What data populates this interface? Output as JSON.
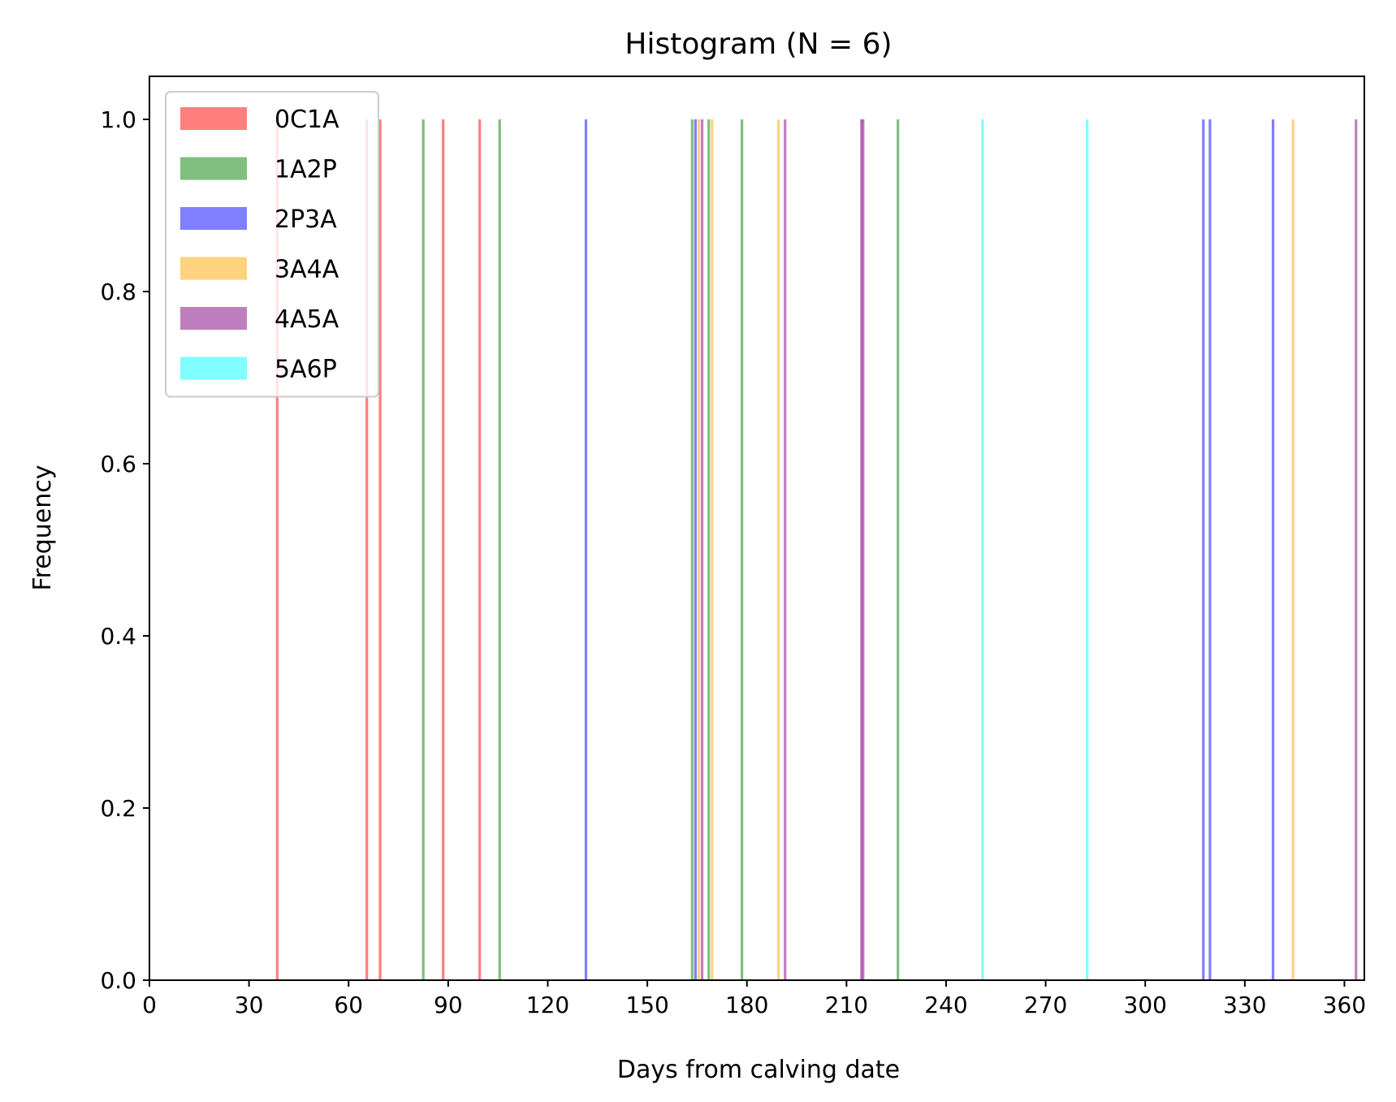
{
  "chart_data": {
    "type": "bar",
    "title": "Histogram (N = 6)",
    "xlabel": "Days from calving date",
    "ylabel": "Frequency",
    "xlim": [
      0,
      366
    ],
    "ylim": [
      0,
      1.05
    ],
    "xticks": [
      0,
      30,
      60,
      90,
      120,
      150,
      180,
      210,
      240,
      270,
      300,
      330,
      360
    ],
    "yticks": [
      0.0,
      0.2,
      0.4,
      0.6,
      0.8,
      1.0
    ],
    "ytick_labels": [
      "0.0",
      "0.2",
      "0.4",
      "0.6",
      "0.8",
      "1.0"
    ],
    "grid": false,
    "legend_position": "upper-left",
    "series": [
      {
        "name": "0C1A",
        "color": "#ff0000",
        "x": [
          38.5,
          65.5,
          69.5,
          88.5,
          99.5
        ],
        "values": [
          1,
          1,
          1,
          1,
          1
        ]
      },
      {
        "name": "1A2P",
        "color": "#008000",
        "x": [
          82.5,
          105.5,
          163.5,
          168.5,
          178.5,
          225.5
        ],
        "values": [
          1,
          1,
          1,
          1,
          1,
          1
        ]
      },
      {
        "name": "2P3A",
        "color": "#0000ff",
        "x": [
          131.5,
          164.5,
          317.5,
          319.5,
          338.5
        ],
        "values": [
          1,
          1,
          1,
          1,
          1
        ]
      },
      {
        "name": "3A4A",
        "color": "#ffa500",
        "x": [
          165.5,
          169.5,
          189.5,
          344.5
        ],
        "values": [
          1,
          1,
          1,
          1
        ]
      },
      {
        "name": "4A5A",
        "color": "#800080",
        "x": [
          166.5,
          191.5,
          214.5,
          215.0,
          363.5
        ],
        "values": [
          1,
          1,
          1,
          1,
          1
        ]
      },
      {
        "name": "5A6P",
        "color": "#00ffff",
        "x": [
          251.0,
          282.5
        ],
        "values": [
          1,
          1
        ]
      }
    ]
  }
}
